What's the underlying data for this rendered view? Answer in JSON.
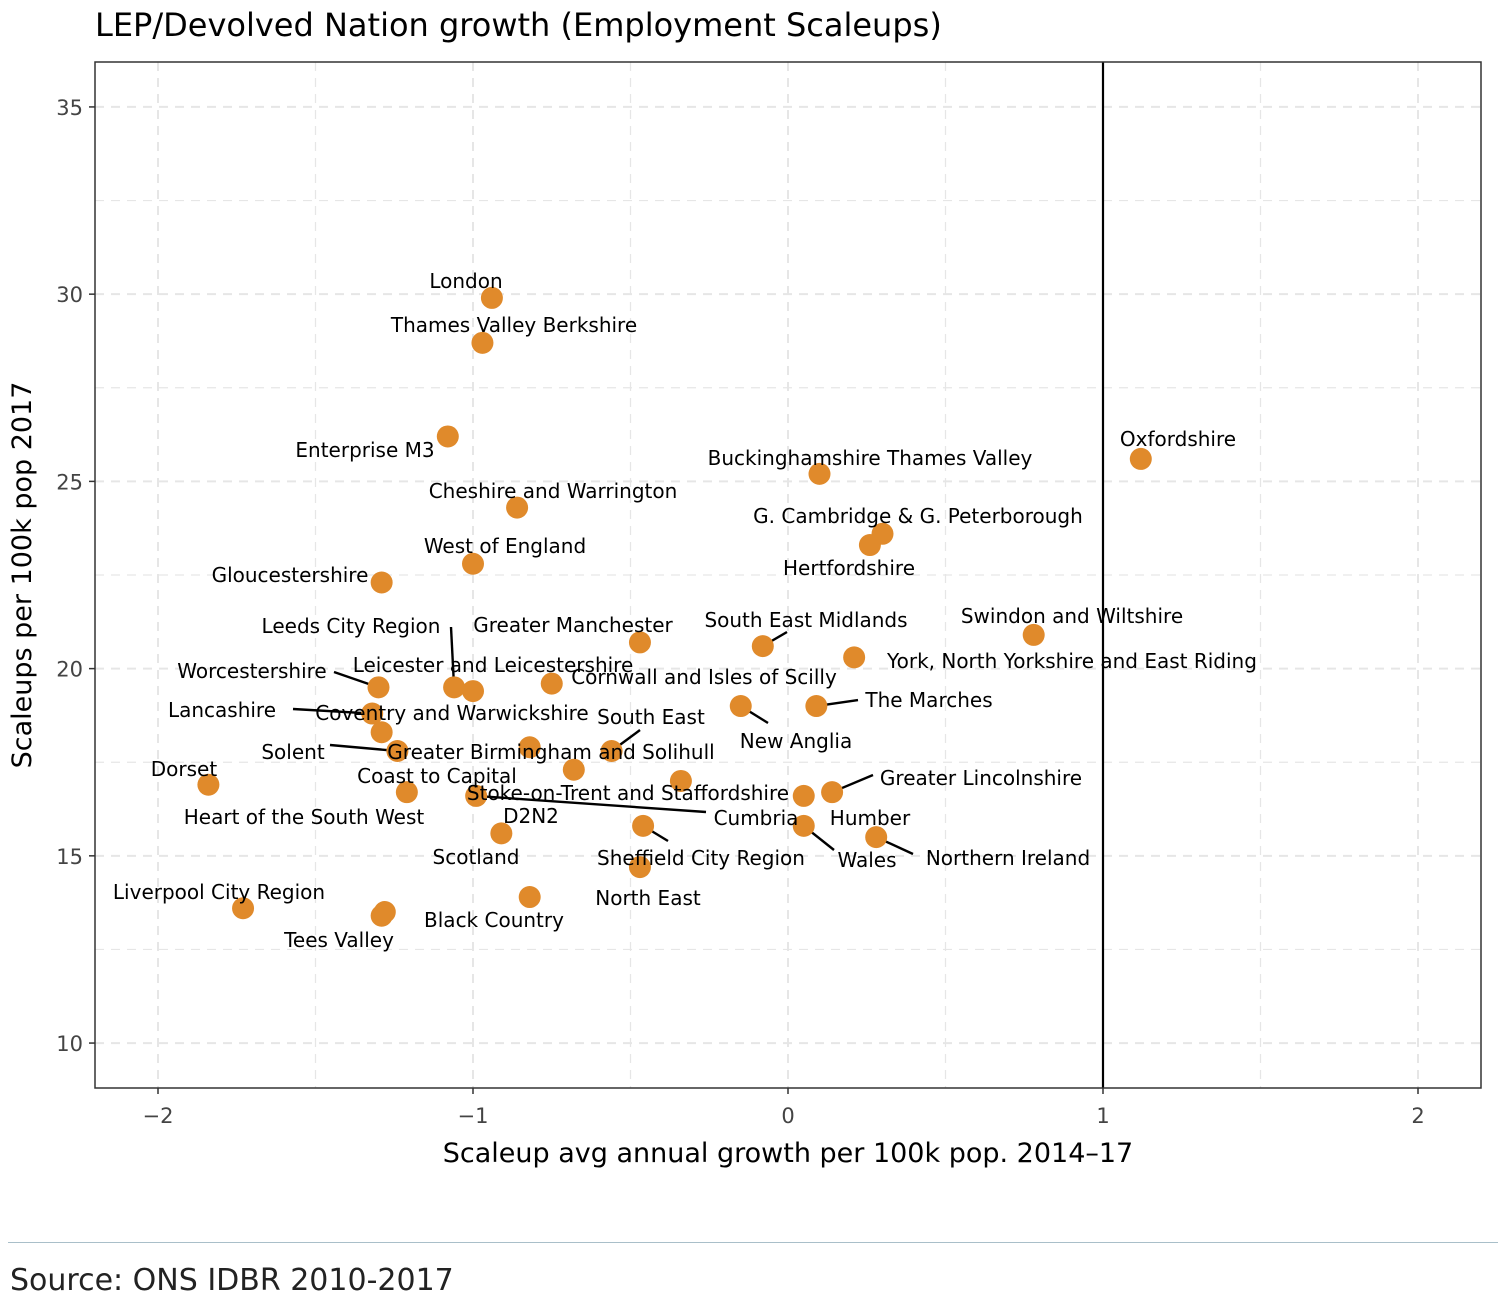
{
  "source_note": "Source: ONS IDBR 2010-2017",
  "colors": {
    "point": "#E08A2B",
    "grid": "#e6e6e6",
    "reference_line": "#000000",
    "panel_border": "#333333"
  },
  "chart_data": {
    "type": "scatter",
    "title": "LEP/Devolved Nation growth (Employment Scaleups)",
    "xlabel": "Scaleup avg annual growth per 100k pop. 2014–17",
    "ylabel": "Scaleups per 100k pop 2017",
    "xlim": [
      -2.2,
      2.2
    ],
    "ylim": [
      8.8,
      36.2
    ],
    "x_ticks": [
      -2,
      -1,
      0,
      1,
      2
    ],
    "x_tick_labels": [
      "−2",
      "−1",
      "0",
      "1",
      "2"
    ],
    "y_ticks": [
      10,
      15,
      20,
      25,
      30,
      35
    ],
    "y_tick_labels": [
      "10",
      "15",
      "20",
      "25",
      "30",
      "35"
    ],
    "grid": true,
    "grid_style": "dashed",
    "reference_line": {
      "orientation": "vertical",
      "x": 1
    },
    "points": [
      {
        "label": "London",
        "x": -0.94,
        "y": 29.9
      },
      {
        "label": "Thames Valley Berkshire",
        "x": -0.97,
        "y": 28.7
      },
      {
        "label": "Enterprise M3",
        "x": -1.08,
        "y": 26.2
      },
      {
        "label": "Oxfordshire",
        "x": 1.12,
        "y": 25.6
      },
      {
        "label": "Buckinghamshire Thames Valley",
        "x": 0.1,
        "y": 25.2
      },
      {
        "label": "Cheshire and Warrington",
        "x": -0.86,
        "y": 24.3
      },
      {
        "label": "G. Cambridge & G. Peterborough",
        "x": 0.3,
        "y": 23.6
      },
      {
        "label": "Hertfordshire",
        "x": 0.26,
        "y": 23.3
      },
      {
        "label": "West of England",
        "x": -1.0,
        "y": 22.8
      },
      {
        "label": "Gloucestershire",
        "x": -1.29,
        "y": 22.3
      },
      {
        "label": "Swindon and Wiltshire",
        "x": 0.78,
        "y": 20.9
      },
      {
        "label": "Greater Manchester",
        "x": -0.47,
        "y": 20.7
      },
      {
        "label": "South East Midlands",
        "x": -0.08,
        "y": 20.6
      },
      {
        "label": "Leeds City Region",
        "x": -1.06,
        "y": 19.5
      },
      {
        "label": "York, North Yorkshire and East Riding",
        "x": 0.21,
        "y": 20.3
      },
      {
        "label": "Leicester and Leicestershire",
        "x": -1.0,
        "y": 19.4
      },
      {
        "label": "Worcestershire",
        "x": -1.3,
        "y": 19.5
      },
      {
        "label": "Cornwall and Isles of Scilly",
        "x": -0.75,
        "y": 19.6
      },
      {
        "label": "The Marches",
        "x": 0.09,
        "y": 19.0
      },
      {
        "label": "New Anglia",
        "x": -0.15,
        "y": 19.0
      },
      {
        "label": "Lancashire",
        "x": -1.32,
        "y": 18.8
      },
      {
        "label": "Coventry and Warwickshire",
        "x": -1.29,
        "y": 18.3
      },
      {
        "label": "Solent",
        "x": -1.24,
        "y": 17.8
      },
      {
        "label": "Greater Birmingham and Solihull",
        "x": -0.82,
        "y": 17.9
      },
      {
        "label": "South East",
        "x": -0.56,
        "y": 17.8
      },
      {
        "label": "Coast to Capital",
        "x": -0.68,
        "y": 17.3
      },
      {
        "label": "Stoke-on-Trent and Staffordshire",
        "x": -0.34,
        "y": 17.0
      },
      {
        "label": "Dorset",
        "x": -1.84,
        "y": 16.9
      },
      {
        "label": "Heart of the South West",
        "x": -1.21,
        "y": 16.7
      },
      {
        "label": "Cumbria",
        "x": -0.99,
        "y": 16.6
      },
      {
        "label": "Greater Lincolnshire",
        "x": 0.14,
        "y": 16.7
      },
      {
        "label": "Humber",
        "x": 0.05,
        "y": 16.6
      },
      {
        "label": "Sheffield City Region",
        "x": -0.46,
        "y": 15.8
      },
      {
        "label": "Wales",
        "x": 0.05,
        "y": 15.8
      },
      {
        "label": "D2N2",
        "x": -0.91,
        "y": 15.6
      },
      {
        "label": "Northern Ireland",
        "x": 0.28,
        "y": 15.5
      },
      {
        "label": "Scotland",
        "x": -0.47,
        "y": 14.7
      },
      {
        "label": "North East",
        "x": -0.82,
        "y": 13.9
      },
      {
        "label": "Liverpool City Region",
        "x": -1.73,
        "y": 13.6
      },
      {
        "label": "Tees Valley",
        "x": -1.29,
        "y": 13.4
      },
      {
        "label": "Black Country",
        "x": -1.28,
        "y": 13.5
      }
    ]
  }
}
